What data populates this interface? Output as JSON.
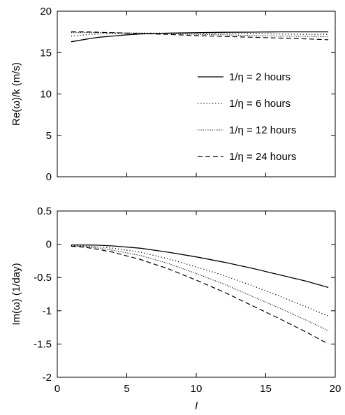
{
  "chart_data": [
    {
      "type": "line",
      "xlabel": "",
      "ylabel": "Re(ω)/k (m/s)",
      "xlim": [
        0,
        20
      ],
      "ylim": [
        0,
        20
      ],
      "xticks": [],
      "yticks": [
        "0",
        "5",
        "10",
        "15",
        "20"
      ],
      "legend_position": "center-right",
      "series": [
        {
          "name": "1/η = 2 hours",
          "style": "solid",
          "x": [
            1,
            2,
            3,
            4,
            5,
            6,
            7,
            8,
            10,
            12,
            14,
            16,
            18,
            19.5
          ],
          "y": [
            16.3,
            16.6,
            16.85,
            17.0,
            17.15,
            17.25,
            17.3,
            17.35,
            17.4,
            17.45,
            17.47,
            17.5,
            17.5,
            17.5
          ]
        },
        {
          "name": "1/η = 6 hours",
          "style": "dotted",
          "x": [
            1,
            2,
            3,
            4,
            6,
            8,
            10,
            12,
            14,
            16,
            18,
            19.5
          ],
          "y": [
            17.0,
            17.15,
            17.25,
            17.3,
            17.35,
            17.35,
            17.35,
            17.3,
            17.3,
            17.25,
            17.2,
            17.2
          ]
        },
        {
          "name": "1/η = 12 hours",
          "style": "fine-dotted",
          "x": [
            1,
            2,
            4,
            6,
            8,
            10,
            12,
            14,
            16,
            18,
            19.5
          ],
          "y": [
            17.4,
            17.42,
            17.4,
            17.35,
            17.3,
            17.2,
            17.15,
            17.05,
            17.0,
            16.95,
            16.9
          ]
        },
        {
          "name": "1/η = 24 hours",
          "style": "dashed",
          "x": [
            1,
            2,
            4,
            6,
            8,
            10,
            12,
            14,
            16,
            18,
            19.5
          ],
          "y": [
            17.5,
            17.5,
            17.4,
            17.3,
            17.2,
            17.05,
            16.95,
            16.85,
            16.75,
            16.65,
            16.55
          ]
        }
      ]
    },
    {
      "type": "line",
      "xlabel": "l",
      "ylabel": "Im(ω) (1/day)",
      "xlim": [
        0,
        20
      ],
      "ylim": [
        -2,
        0.5
      ],
      "xticks": [
        "0",
        "5",
        "10",
        "15",
        "20"
      ],
      "yticks": [
        "-2",
        "-1.5",
        "-1",
        "-0.5",
        "0",
        "0.5"
      ],
      "series": [
        {
          "name": "1/η = 2 hours",
          "style": "solid",
          "x": [
            1,
            2,
            3,
            4,
            6,
            8,
            10,
            12,
            14,
            16,
            18,
            19.5
          ],
          "y": [
            -0.01,
            -0.01,
            -0.015,
            -0.025,
            -0.06,
            -0.12,
            -0.19,
            -0.27,
            -0.36,
            -0.46,
            -0.56,
            -0.65
          ]
        },
        {
          "name": "1/η = 6 hours",
          "style": "dotted",
          "x": [
            1,
            2,
            3,
            4,
            6,
            8,
            10,
            12,
            14,
            16,
            18,
            19.5
          ],
          "y": [
            -0.02,
            -0.025,
            -0.04,
            -0.06,
            -0.12,
            -0.22,
            -0.34,
            -0.47,
            -0.62,
            -0.78,
            -0.95,
            -1.08
          ]
        },
        {
          "name": "1/η = 12 hours",
          "style": "fine-dotted",
          "x": [
            1,
            2,
            3,
            4,
            6,
            8,
            10,
            12,
            14,
            16,
            18,
            19.5
          ],
          "y": [
            -0.025,
            -0.035,
            -0.06,
            -0.09,
            -0.17,
            -0.29,
            -0.44,
            -0.6,
            -0.78,
            -0.96,
            -1.15,
            -1.3
          ]
        },
        {
          "name": "1/η = 24 hours",
          "style": "dashed",
          "x": [
            1,
            2,
            3,
            4,
            6,
            8,
            10,
            12,
            14,
            16,
            18,
            19.5
          ],
          "y": [
            -0.03,
            -0.045,
            -0.08,
            -0.12,
            -0.23,
            -0.37,
            -0.54,
            -0.72,
            -0.92,
            -1.12,
            -1.33,
            -1.5
          ]
        }
      ]
    }
  ]
}
